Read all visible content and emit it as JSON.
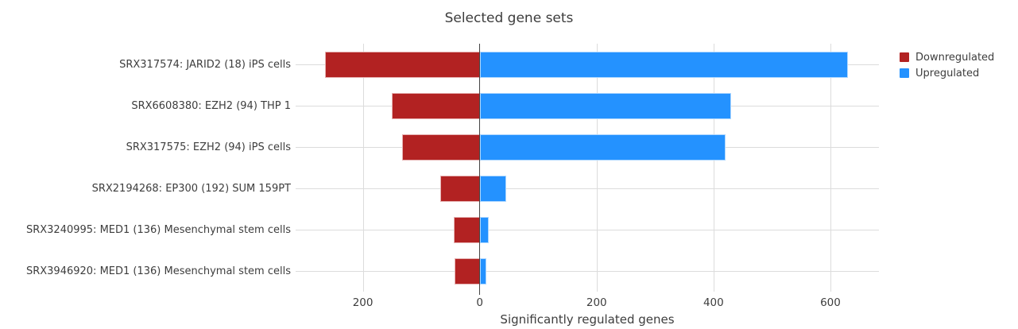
{
  "figure": {
    "background": "#ffffff"
  },
  "chart_data": {
    "type": "bar",
    "orientation": "horizontal",
    "diverging": true,
    "title": "Selected gene sets",
    "xlabel": "Significantly regulated genes",
    "ylabel": "",
    "categories": [
      "SRX317574: JARID2 (18) iPS cells",
      "SRX6608380: EZH2 (94) THP 1",
      "SRX317575: EZH2 (94) iPS cells",
      "SRX2194268: EP300 (192) SUM 159PT",
      "SRX3240995: MED1 (136) Mesenchymal stem cells",
      "SRX3946920: MED1 (136) Mesenchymal stem cells"
    ],
    "series": [
      {
        "name": "Downregulated",
        "color": "#b22222",
        "edge_color": "#e5b0b0",
        "direction": "negative",
        "values": [
          265,
          150,
          133,
          67,
          45,
          43
        ]
      },
      {
        "name": "Upregulated",
        "color": "#2492ff",
        "edge_color": "#aed7ff",
        "direction": "positive",
        "values": [
          630,
          430,
          420,
          45,
          15,
          12
        ]
      }
    ],
    "xlim": [
      -315,
      683
    ],
    "xticks": [
      {
        "value": -200,
        "label": "200"
      },
      {
        "value": 0,
        "label": "0"
      },
      {
        "value": 200,
        "label": "200"
      },
      {
        "value": 400,
        "label": "400"
      },
      {
        "value": 600,
        "label": "600"
      }
    ],
    "grid": true,
    "grid_color": "#dcdcdc",
    "zero_line_color": "#444444",
    "legend": {
      "position": "top-right",
      "items": [
        "Downregulated",
        "Upregulated"
      ]
    }
  }
}
